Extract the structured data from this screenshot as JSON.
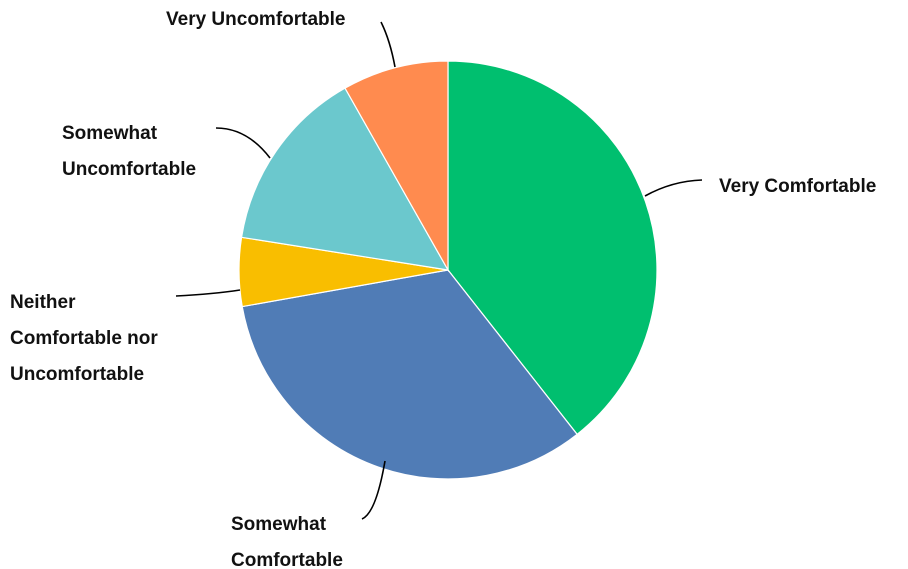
{
  "chart_data": {
    "type": "pie",
    "title": "",
    "start": "12 o'clock",
    "direction": "clockwise",
    "slices": [
      {
        "label": "Very Comfortable",
        "value": 39.4,
        "color": "#00BF6F"
      },
      {
        "label": "Somewhat Comfortable",
        "value": 32.8,
        "color": "#507CB6"
      },
      {
        "label": "Neither Comfortable nor Uncomfortable",
        "value": 5.3,
        "color": "#F9BE00"
      },
      {
        "label": "Somewhat Uncomfortable",
        "value": 14.3,
        "color": "#6BC8CD"
      },
      {
        "label": "Very Uncomfortable",
        "value": 8.2,
        "color": "#FF8B4F"
      }
    ]
  }
}
